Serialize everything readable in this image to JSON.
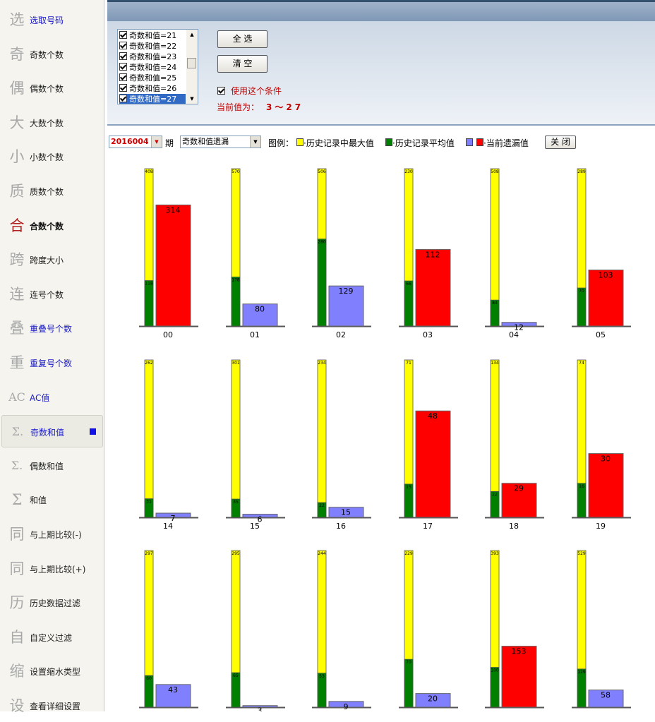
{
  "sidebar": {
    "items": [
      {
        "glyph": "选",
        "label": "选取号码",
        "style": "blue"
      },
      {
        "glyph": "奇",
        "label": "奇数个数",
        "style": "normal"
      },
      {
        "glyph": "偶",
        "label": "偶数个数",
        "style": "normal"
      },
      {
        "glyph": "大",
        "label": "大数个数",
        "style": "normal"
      },
      {
        "glyph": "小",
        "label": "小数个数",
        "style": "normal"
      },
      {
        "glyph": "质",
        "label": "质数个数",
        "style": "normal"
      },
      {
        "glyph": "合",
        "label": "合数个数",
        "style": "bold"
      },
      {
        "glyph": "跨",
        "label": "跨度大小",
        "style": "normal"
      },
      {
        "glyph": "连",
        "label": "连号个数",
        "style": "normal"
      },
      {
        "glyph": "叠",
        "label": "重叠号个数",
        "style": "blue"
      },
      {
        "glyph": "重",
        "label": "重复号个数",
        "style": "blue"
      },
      {
        "glyph": "AC",
        "label": "AC值",
        "style": "blue"
      },
      {
        "glyph": "Σ.",
        "label": "奇数和值",
        "style": "blue"
      },
      {
        "glyph": "Σ.",
        "label": "偶数和值",
        "style": "normal"
      },
      {
        "glyph": "Σ",
        "label": "和值",
        "style": "normal"
      },
      {
        "glyph": "同",
        "label": "与上期比较(-)",
        "style": "normal"
      },
      {
        "glyph": "同",
        "label": "与上期比较(+)",
        "style": "normal"
      },
      {
        "glyph": "历",
        "label": "历史数据过滤",
        "style": "normal"
      },
      {
        "glyph": "自",
        "label": "自定义过滤",
        "style": "normal"
      },
      {
        "glyph": "缩",
        "label": "设置缩水类型",
        "style": "normal"
      },
      {
        "glyph": "设",
        "label": "查看详细设置",
        "style": "normal"
      }
    ],
    "active_index": 12,
    "active_marker_color": "#1212e6"
  },
  "filter": {
    "list_items": [
      "奇数和值=21",
      "奇数和值=22",
      "奇数和值=23",
      "奇数和值=24",
      "奇数和值=25",
      "奇数和值=26",
      "奇数和值=27"
    ],
    "selected_index": 6,
    "select_all_label": "全 选",
    "clear_label": "清 空",
    "use_condition_label": "使用这个条件",
    "current_value_label": "当前值为：",
    "current_value": "3～27"
  },
  "toolbar": {
    "period_value": "2016004",
    "period_suffix": "期",
    "type_value": "奇数和值遗漏",
    "legend_label": "图例：",
    "legend_max": "·历史记录中最大值",
    "legend_avg": "·历史记录平均值",
    "legend_cur": "·当前遗漏值",
    "close_label": "关 闭"
  },
  "colors": {
    "max": "#ffff00",
    "avg": "#008000",
    "current_high": "#ff0000",
    "current_low": "#8080ff"
  },
  "chart_data": {
    "type": "bar",
    "series": [
      "历史记录中最大值",
      "历史记录平均值",
      "当前遗漏值"
    ],
    "groups": [
      {
        "label": "00",
        "max": 408,
        "avg": 118,
        "cur": 314,
        "cur_color": "red"
      },
      {
        "label": "01",
        "max": 570,
        "avg": 178,
        "cur": 80,
        "cur_color": "blue"
      },
      {
        "label": "02",
        "max": 506,
        "avg": 280,
        "cur": 129,
        "cur_color": "blue"
      },
      {
        "label": "03",
        "max": 230,
        "avg": 66,
        "cur": 112,
        "cur_color": "red"
      },
      {
        "label": "04",
        "max": 508,
        "avg": 84,
        "cur": 12,
        "cur_color": "blue"
      },
      {
        "label": "05",
        "max": 289,
        "avg": 70,
        "cur": 103,
        "cur_color": "red"
      },
      {
        "label": "14",
        "max": 262,
        "avg": 31,
        "cur": 7,
        "cur_color": "blue"
      },
      {
        "label": "15",
        "max": 301,
        "avg": 35,
        "cur": 6,
        "cur_color": "blue"
      },
      {
        "label": "16",
        "max": 234,
        "avg": 22,
        "cur": 15,
        "cur_color": "blue"
      },
      {
        "label": "17",
        "max": 71,
        "avg": 15,
        "cur": 48,
        "cur_color": "red"
      },
      {
        "label": "18",
        "max": 134,
        "avg": 22,
        "cur": 29,
        "cur_color": "red"
      },
      {
        "label": "19",
        "max": 74,
        "avg": 16,
        "cur": 30,
        "cur_color": "red"
      },
      {
        "label": "",
        "max": 297,
        "avg": 60,
        "cur": 43,
        "cur_color": "blue"
      },
      {
        "label": "",
        "max": 295,
        "avg": 65,
        "cur": 3,
        "cur_color": "blue"
      },
      {
        "label": "",
        "max": 244,
        "avg": 53,
        "cur": 9,
        "cur_color": "blue"
      },
      {
        "label": "",
        "max": 229,
        "avg": 70,
        "cur": 20,
        "cur_color": "blue"
      },
      {
        "label": "",
        "max": 393,
        "avg": 100,
        "cur": 153,
        "cur_color": "red"
      },
      {
        "label": "",
        "max": 529,
        "avg": 129,
        "cur": 58,
        "cur_color": "blue"
      }
    ]
  }
}
